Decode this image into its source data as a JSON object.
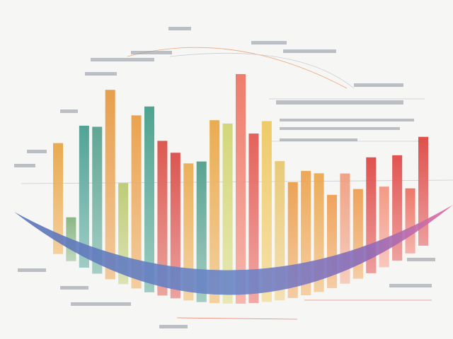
{
  "chart_data": {
    "type": "bar",
    "categories": [
      null,
      null,
      null,
      null,
      null,
      null,
      null,
      null,
      null,
      null,
      null,
      null,
      null,
      null,
      null,
      null,
      null,
      null,
      null,
      null,
      null,
      null,
      null,
      null,
      null,
      null,
      null,
      null,
      null
    ],
    "values": [
      137,
      42,
      181,
      188,
      248,
      123,
      225,
      243,
      199,
      186,
      174,
      179,
      239,
      235,
      305,
      220,
      236,
      177,
      144,
      156,
      148,
      112,
      136,
      107,
      144,
      94,
      129,
      72,
      134
    ],
    "colors": [
      "#e9a23c",
      "#7fb07a",
      "#3f9a8c",
      "#4f9d8a",
      "#e6963a",
      "#b9c86a",
      "#e99a3e",
      "#3d9a85",
      "#d9483e",
      "#d8453f",
      "#eaa94a",
      "#4a9a86",
      "#e9a43f",
      "#cfd46a",
      "#ee6f5c",
      "#e2524a",
      "#eec55a",
      "#e8c56a",
      "#eb9a45",
      "#eca047",
      "#eba448",
      "#ee9a4a",
      "#f09a7a",
      "#ed9a48",
      "#dd3f3c",
      "#f3907a",
      "#df4340",
      "#ec6a5a",
      "#dc3e3a"
    ]
  }
}
